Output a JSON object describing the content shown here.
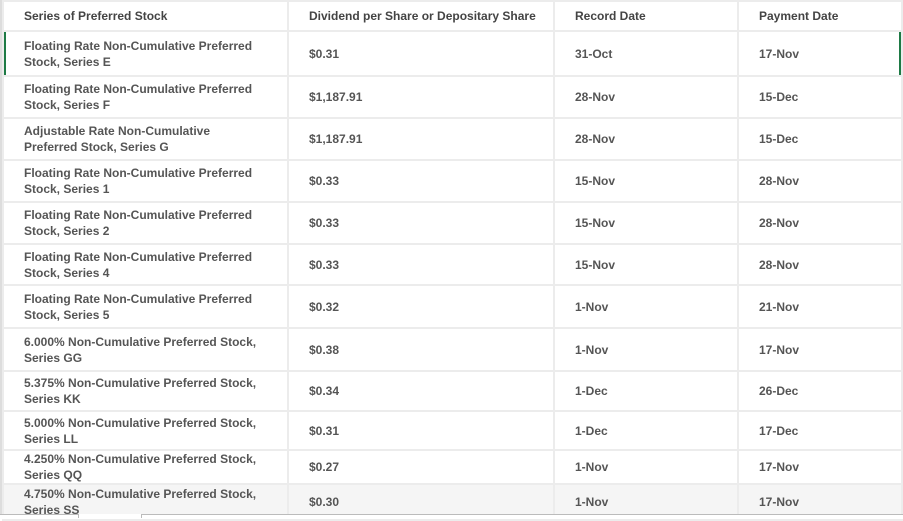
{
  "table": {
    "headers": [
      "Series of Preferred Stock",
      "Dividend per Share or Depositary Share",
      "Record Date",
      "Payment Date"
    ],
    "rows": [
      [
        "Floating Rate Non-Cumulative Preferred Stock, Series E",
        "$0.31",
        "31-Oct",
        "17-Nov"
      ],
      [
        "Floating Rate Non-Cumulative Preferred Stock, Series F",
        "$1,187.91",
        "28-Nov",
        "15-Dec"
      ],
      [
        "Adjustable Rate Non-Cumulative Preferred Stock, Series G",
        "$1,187.91",
        "28-Nov",
        "15-Dec"
      ],
      [
        "Floating Rate Non-Cumulative Preferred Stock, Series 1",
        "$0.33",
        "15-Nov",
        "28-Nov"
      ],
      [
        "Floating Rate Non-Cumulative Preferred Stock, Series 2",
        "$0.33",
        "15-Nov",
        "28-Nov"
      ],
      [
        "Floating Rate Non-Cumulative Preferred Stock, Series 4",
        "$0.33",
        "15-Nov",
        "28-Nov"
      ],
      [
        "Floating Rate Non-Cumulative Preferred Stock, Series 5",
        "$0.32",
        "1-Nov",
        "21-Nov"
      ],
      [
        "6.000% Non-Cumulative Preferred Stock, Series GG",
        "$0.38",
        "1-Nov",
        "17-Nov"
      ],
      [
        "5.375% Non-Cumulative Preferred Stock, Series KK",
        "$0.34",
        "1-Dec",
        "26-Dec"
      ],
      [
        "5.000% Non-Cumulative Preferred Stock, Series LL",
        "$0.31",
        "1-Dec",
        "17-Dec"
      ],
      [
        "4.250% Non-Cumulative Preferred Stock, Series QQ",
        "$0.27",
        "1-Nov",
        "17-Nov"
      ],
      [
        "4.750% Non-Cumulative Preferred Stock, Series SS",
        "$0.30",
        "1-Nov",
        "17-Nov"
      ]
    ]
  },
  "colors": {
    "selection": "#1e7a45",
    "text": "#555555"
  }
}
